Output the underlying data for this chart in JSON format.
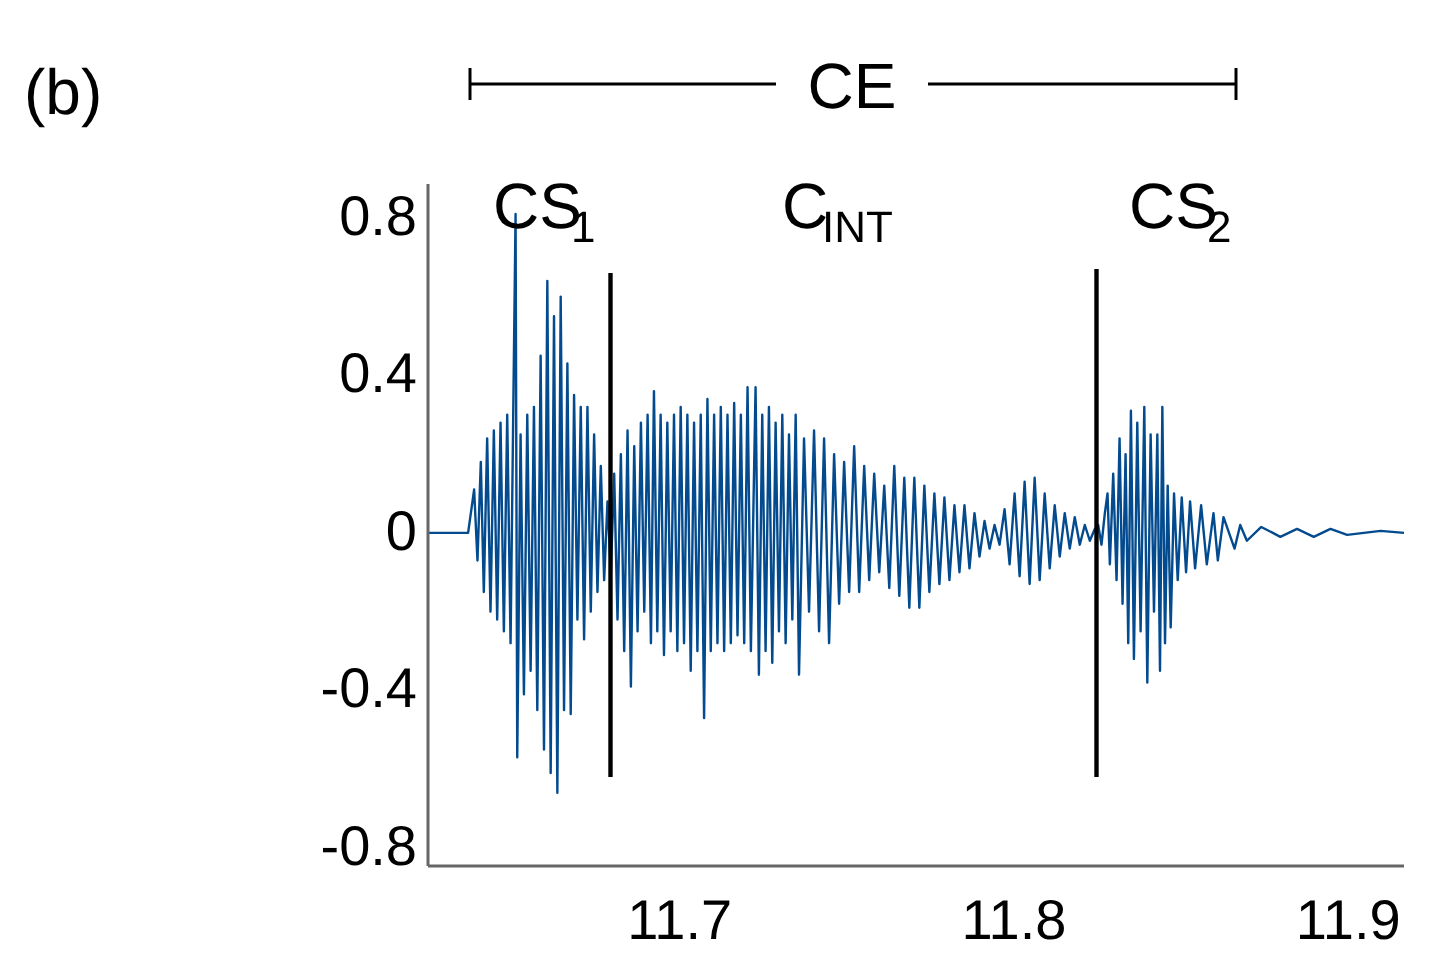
{
  "chart_data": {
    "type": "line",
    "xlim": [
      11.625,
      11.917
    ],
    "ylim": [
      -0.846,
      0.886
    ],
    "xticks": [
      11.7,
      11.8,
      11.9
    ],
    "yticks": [
      -0.8,
      -0.4,
      0,
      0.4,
      0.8
    ],
    "grid": false,
    "marker": "none",
    "line_style": "solid",
    "annotations": [
      "(b)",
      "CE",
      "CS$_{1}$",
      "C$_{INT}$",
      "CS$_{2}$"
    ],
    "series": [
      {
        "color": "#034b8e",
        "x": [
          11.625,
          11.637,
          11.6388,
          11.6398,
          11.6408,
          11.6417,
          11.6427,
          11.6437,
          11.6447,
          11.6457,
          11.6467,
          11.6477,
          11.6487,
          11.6497,
          11.6512,
          11.6517,
          11.6527,
          11.6537,
          11.6547,
          11.6557,
          11.6567,
          11.6577,
          11.6587,
          11.6597,
          11.6607,
          11.6617,
          11.6627,
          11.6637,
          11.6647,
          11.6657,
          11.6667,
          11.6677,
          11.6687,
          11.6697,
          11.6707,
          11.6717,
          11.6727,
          11.6737,
          11.6747,
          11.6757,
          11.6767,
          11.6777,
          11.6787,
          11.6797,
          11.6807,
          11.6817,
          11.6827,
          11.6837,
          11.6847,
          11.6857,
          11.6867,
          11.6877,
          11.6887,
          11.6897,
          11.6907,
          11.6917,
          11.6926,
          11.6936,
          11.6946,
          11.6956,
          11.6966,
          11.6976,
          11.6986,
          11.6996,
          11.7006,
          11.7016,
          11.7026,
          11.7036,
          11.7046,
          11.7056,
          11.7066,
          11.7076,
          11.7086,
          11.7096,
          11.7106,
          11.7116,
          11.7126,
          11.7136,
          11.7146,
          11.7156,
          11.7166,
          11.7176,
          11.7186,
          11.7196,
          11.7206,
          11.7216,
          11.723,
          11.724,
          11.725,
          11.726,
          11.727,
          11.728,
          11.729,
          11.73,
          11.731,
          11.732,
          11.733,
          11.734,
          11.735,
          11.736,
          11.7375,
          11.739,
          11.7405,
          11.742,
          11.7435,
          11.745,
          11.7465,
          11.748,
          11.7495,
          11.751,
          11.7525,
          11.754,
          11.7555,
          11.757,
          11.7585,
          11.76,
          11.7615,
          11.763,
          11.7645,
          11.766,
          11.7675,
          11.769,
          11.7705,
          11.772,
          11.7735,
          11.775,
          11.7765,
          11.778,
          11.7795,
          11.781,
          11.7825,
          11.784,
          11.7855,
          11.787,
          11.7885,
          11.79,
          11.7915,
          11.793,
          11.7945,
          11.796,
          11.7975,
          11.799,
          11.8005,
          11.802,
          11.8035,
          11.805,
          11.8065,
          11.808,
          11.8095,
          11.811,
          11.8125,
          11.814,
          11.8155,
          11.817,
          11.8185,
          11.82,
          11.8215,
          11.823,
          11.8245,
          11.8255,
          11.8265,
          11.8275,
          11.8283,
          11.829,
          11.83,
          11.831,
          11.8319,
          11.8328,
          11.8337,
          11.8345,
          11.8353,
          11.8362,
          11.8372,
          11.8382,
          11.8393,
          11.8402,
          11.8412,
          11.8422,
          11.8432,
          11.844,
          11.8447,
          11.8455,
          11.8463,
          11.8472,
          11.8482,
          11.8493,
          11.8505,
          11.8518,
          11.853,
          11.8545,
          11.8563,
          11.858,
          11.86,
          11.8613,
          11.863,
          11.8663,
          11.868,
          11.87,
          11.8743,
          11.88,
          11.885,
          11.89,
          11.895,
          11.9,
          11.91,
          11.917
        ],
        "values": [
          0,
          0,
          0.11,
          -0.07,
          0.18,
          -0.15,
          0.24,
          -0.2,
          0.26,
          -0.22,
          0.28,
          -0.25,
          0.3,
          -0.28,
          0.81,
          -0.57,
          0.25,
          -0.41,
          0.3,
          -0.35,
          0.32,
          -0.45,
          0.45,
          -0.55,
          0.64,
          -0.61,
          0.55,
          -0.66,
          0.6,
          -0.45,
          0.43,
          -0.46,
          0.35,
          -0.22,
          0.32,
          -0.27,
          0.32,
          -0.2,
          0.25,
          -0.15,
          0.17,
          -0.12,
          0.08,
          -0.1,
          0.15,
          -0.22,
          0.2,
          -0.3,
          0.26,
          -0.39,
          0.22,
          -0.25,
          0.28,
          -0.2,
          0.3,
          -0.28,
          0.36,
          -0.25,
          0.3,
          -0.31,
          0.28,
          -0.25,
          0.3,
          -0.3,
          0.32,
          -0.28,
          0.3,
          -0.35,
          0.28,
          -0.3,
          0.3,
          -0.47,
          0.34,
          -0.3,
          0.3,
          -0.28,
          0.32,
          -0.3,
          0.3,
          -0.28,
          0.33,
          -0.26,
          0.3,
          -0.28,
          0.37,
          -0.3,
          0.37,
          -0.36,
          0.3,
          -0.3,
          0.32,
          -0.33,
          0.28,
          -0.25,
          0.3,
          -0.28,
          0.25,
          -0.22,
          0.3,
          -0.36,
          0.24,
          -0.2,
          0.26,
          -0.25,
          0.24,
          -0.28,
          0.2,
          -0.18,
          0.18,
          -0.15,
          0.22,
          -0.15,
          0.17,
          -0.12,
          0.15,
          -0.1,
          0.12,
          -0.14,
          0.17,
          -0.16,
          0.14,
          -0.19,
          0.14,
          -0.19,
          0.12,
          -0.15,
          0.1,
          -0.13,
          0.09,
          -0.12,
          0.07,
          -0.1,
          0.07,
          -0.09,
          0.05,
          -0.06,
          0.03,
          -0.04,
          0.02,
          -0.03,
          0.06,
          -0.08,
          0.1,
          -0.11,
          0.13,
          -0.13,
          0.14,
          -0.12,
          0.1,
          -0.09,
          0.07,
          -0.06,
          0.05,
          -0.04,
          0.04,
          -0.03,
          0.02,
          -0.02,
          0.01,
          0.02,
          -0.03,
          0.05,
          0.1,
          -0.08,
          0.15,
          -0.12,
          0.24,
          -0.18,
          0.2,
          -0.28,
          0.31,
          -0.32,
          0.28,
          -0.25,
          0.32,
          -0.38,
          0.25,
          -0.2,
          0.25,
          -0.35,
          0.32,
          -0.28,
          0.12,
          -0.24,
          0.1,
          -0.12,
          0.09,
          -0.1,
          0.08,
          -0.09,
          0.07,
          -0.08,
          0.05,
          -0.07,
          0.04,
          -0.04,
          0.02,
          -0.02,
          0.015,
          -0.01,
          0.01,
          -0.01,
          0.01,
          -0.005,
          0.005,
          0
        ]
      },
      {
        "color": "#000000",
        "x": [
          11.6796,
          11.6796
        ],
        "values": [
          0.66,
          -0.62
        ]
      },
      {
        "color": "#000000",
        "x": [
          11.825,
          11.825
        ],
        "values": [
          0.67,
          -0.62
        ]
      }
    ]
  }
}
